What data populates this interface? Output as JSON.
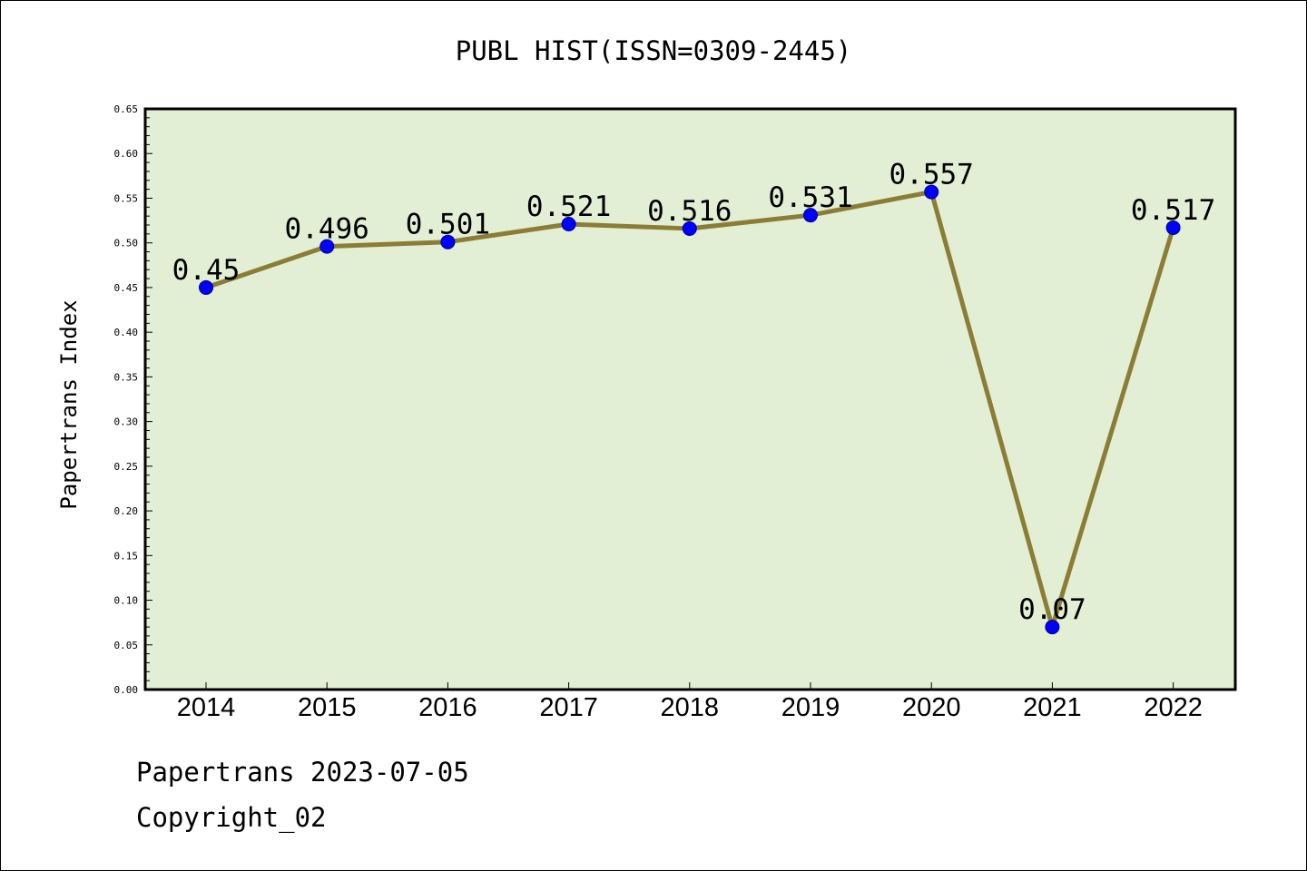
{
  "chart_data": {
    "type": "line",
    "title": "PUBL HIST(ISSN=0309-2445)",
    "ylabel": "Papertrans Index",
    "xlabel": "",
    "categories": [
      "2014",
      "2015",
      "2016",
      "2017",
      "2018",
      "2019",
      "2020",
      "2021",
      "2022"
    ],
    "values": [
      0.45,
      0.496,
      0.501,
      0.521,
      0.516,
      0.531,
      0.557,
      0.07,
      0.517
    ],
    "data_labels": [
      "0.45",
      "0.496",
      "0.501",
      "0.521",
      "0.516",
      "0.531",
      "0.557",
      "0.07",
      "0.517"
    ],
    "ylim": [
      0,
      0.65
    ],
    "yticks": [
      "0.00",
      "0.05",
      "0.10",
      "0.15",
      "0.20",
      "0.25",
      "0.30",
      "0.35",
      "0.40",
      "0.45",
      "0.50",
      "0.55",
      "0.60",
      "0.65"
    ],
    "grid": false,
    "colors": {
      "plot_background": "#e2efd4",
      "line": "#8b7d35",
      "marker": "#0000ff"
    }
  },
  "footer": {
    "line1": "Papertrans 2023-07-05",
    "line2": "Copyright_02"
  }
}
